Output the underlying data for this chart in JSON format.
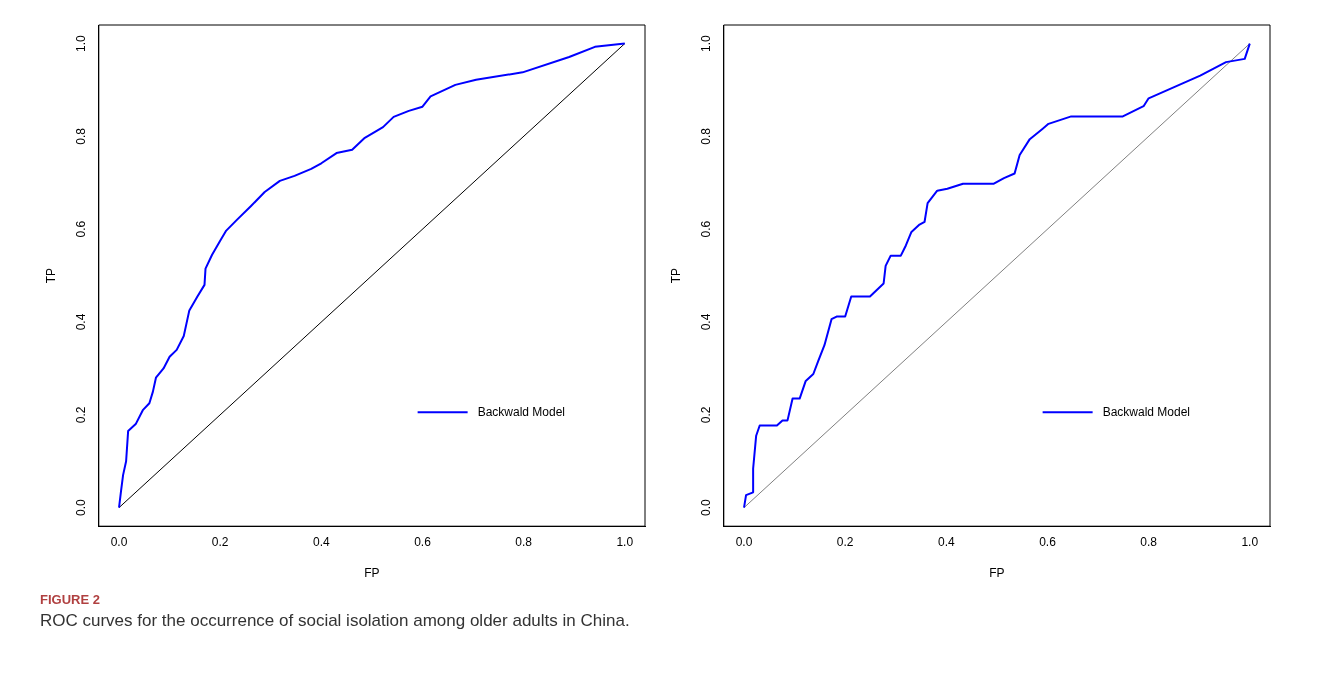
{
  "chart_data": [
    {
      "type": "line",
      "xlabel": "FP",
      "ylabel": "TP",
      "xlim": [
        -0.04,
        1.04
      ],
      "ylim": [
        -0.04,
        1.04
      ],
      "xticks": [
        {
          "value": 0,
          "label": "0.0"
        },
        {
          "value": 0.2,
          "label": "0.2"
        },
        {
          "value": 0.4,
          "label": "0.4"
        },
        {
          "value": 0.6,
          "label": "0.6"
        },
        {
          "value": 0.8,
          "label": "0.8"
        },
        {
          "value": 1,
          "label": "1.0"
        }
      ],
      "yticks": [
        {
          "value": 0,
          "label": "0.0"
        },
        {
          "value": 0.2,
          "label": "0.2"
        },
        {
          "value": 0.4,
          "label": "0.4"
        },
        {
          "value": 0.6,
          "label": "0.6"
        },
        {
          "value": 0.8,
          "label": "0.8"
        },
        {
          "value": 1,
          "label": "1.0"
        }
      ],
      "grid": false,
      "legend": "bottom right",
      "marker": "none",
      "series": [
        {
          "name": "Backwald Model",
          "color": "#0000ff",
          "x": [
            0,
            0.004,
            0.008,
            0.014,
            0.018,
            0.033,
            0.047,
            0.06,
            0.067,
            0.073,
            0.088,
            0.1,
            0.114,
            0.128,
            0.139,
            0.155,
            0.169,
            0.171,
            0.184,
            0.2,
            0.212,
            0.233,
            0.261,
            0.288,
            0.318,
            0.347,
            0.38,
            0.4,
            0.43,
            0.461,
            0.486,
            0.522,
            0.543,
            0.573,
            0.6,
            0.616,
            0.665,
            0.706,
            0.798,
            0.89,
            0.941,
            1
          ],
          "values": [
            0,
            0.036,
            0.07,
            0.1,
            0.165,
            0.18,
            0.21,
            0.225,
            0.25,
            0.28,
            0.3,
            0.325,
            0.34,
            0.37,
            0.425,
            0.455,
            0.48,
            0.515,
            0.545,
            0.575,
            0.597,
            0.62,
            0.65,
            0.68,
            0.704,
            0.715,
            0.73,
            0.742,
            0.764,
            0.771,
            0.797,
            0.82,
            0.842,
            0.855,
            0.864,
            0.886,
            0.911,
            0.922,
            0.938,
            0.971,
            0.993,
            1
          ]
        },
        {
          "color": "#000000",
          "x": [
            0,
            1
          ],
          "values": [
            0,
            1
          ]
        }
      ],
      "annotations": [
        "FIGURE 2",
        "ROC curves for the occurrence of social isolation among older adults in China."
      ]
    },
    {
      "type": "line",
      "xlabel": "FP",
      "ylabel": "TP",
      "xlim": [
        -0.04,
        1.04
      ],
      "ylim": [
        -0.04,
        1.04
      ],
      "xticks": [
        {
          "value": 0,
          "label": "0.0"
        },
        {
          "value": 0.2,
          "label": "0.2"
        },
        {
          "value": 0.4,
          "label": "0.4"
        },
        {
          "value": 0.6,
          "label": "0.6"
        },
        {
          "value": 0.8,
          "label": "0.8"
        },
        {
          "value": 1,
          "label": "1.0"
        }
      ],
      "yticks": [
        {
          "value": 0,
          "label": "0.0"
        },
        {
          "value": 0.2,
          "label": "0.2"
        },
        {
          "value": 0.4,
          "label": "0.4"
        },
        {
          "value": 0.6,
          "label": "0.6"
        },
        {
          "value": 0.8,
          "label": "0.8"
        },
        {
          "value": 1,
          "label": "1.0"
        }
      ],
      "grid": false,
      "legend": "bottom right",
      "marker": "none",
      "series": [
        {
          "name": "Backwald Model",
          "color": "#0000ff",
          "x": [
            0,
            0.004,
            0.018,
            0.018,
            0.024,
            0.031,
            0.065,
            0.076,
            0.086,
            0.096,
            0.11,
            0.122,
            0.137,
            0.147,
            0.159,
            0.173,
            0.184,
            0.2,
            0.212,
            0.249,
            0.276,
            0.28,
            0.29,
            0.31,
            0.32,
            0.331,
            0.347,
            0.357,
            0.363,
            0.382,
            0.402,
            0.433,
            0.494,
            0.514,
            0.535,
            0.545,
            0.565,
            0.59,
            0.602,
            0.647,
            0.749,
            0.79,
            0.8,
            0.902,
            0.953,
            0.99,
            1
          ],
          "values": [
            0,
            0.027,
            0.033,
            0.084,
            0.155,
            0.177,
            0.177,
            0.188,
            0.188,
            0.235,
            0.235,
            0.273,
            0.288,
            0.317,
            0.35,
            0.406,
            0.412,
            0.412,
            0.455,
            0.455,
            0.483,
            0.521,
            0.543,
            0.543,
            0.565,
            0.594,
            0.61,
            0.616,
            0.656,
            0.683,
            0.687,
            0.698,
            0.698,
            0.71,
            0.72,
            0.76,
            0.794,
            0.816,
            0.827,
            0.843,
            0.843,
            0.865,
            0.882,
            0.931,
            0.96,
            0.967,
            1
          ]
        },
        {
          "color": "#808080",
          "x": [
            0,
            1
          ],
          "values": [
            0,
            1
          ]
        }
      ]
    }
  ]
}
